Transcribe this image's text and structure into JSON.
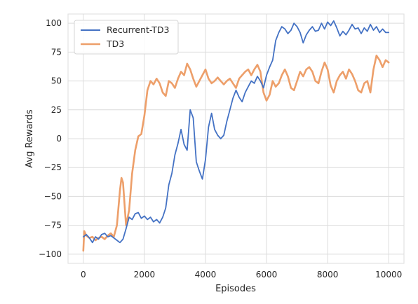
{
  "chart_data": {
    "type": "line",
    "xlabel": "Episodes",
    "ylabel": "Avg Rewards",
    "xlim": [
      -500,
      10500
    ],
    "ylim": [
      -108,
      108
    ],
    "x_ticks": [
      0,
      2000,
      4000,
      6000,
      8000,
      10000
    ],
    "x_tick_labels": [
      "0",
      "2000",
      "4000",
      "6000",
      "8000",
      "10000"
    ],
    "y_ticks": [
      -100,
      -75,
      -50,
      -25,
      0,
      25,
      50,
      75,
      100
    ],
    "y_tick_labels": [
      "−100",
      "−75",
      "−50",
      "−25",
      "0",
      "25",
      "50",
      "75",
      "100"
    ],
    "grid": true,
    "legend": {
      "placement": "top-left"
    },
    "series": [
      {
        "name": "Recurrent-TD3",
        "color": "#4472c4",
        "points": [
          [
            0,
            -85
          ],
          [
            100,
            -83
          ],
          [
            200,
            -86
          ],
          [
            300,
            -90
          ],
          [
            400,
            -85
          ],
          [
            500,
            -87
          ],
          [
            600,
            -83
          ],
          [
            700,
            -82
          ],
          [
            800,
            -85
          ],
          [
            900,
            -84
          ],
          [
            1000,
            -86
          ],
          [
            1100,
            -88
          ],
          [
            1200,
            -90
          ],
          [
            1300,
            -87
          ],
          [
            1400,
            -78
          ],
          [
            1500,
            -68
          ],
          [
            1600,
            -70
          ],
          [
            1700,
            -65
          ],
          [
            1800,
            -64
          ],
          [
            1900,
            -69
          ],
          [
            2000,
            -67
          ],
          [
            2100,
            -70
          ],
          [
            2200,
            -68
          ],
          [
            2300,
            -72
          ],
          [
            2400,
            -70
          ],
          [
            2500,
            -73
          ],
          [
            2600,
            -68
          ],
          [
            2700,
            -60
          ],
          [
            2800,
            -40
          ],
          [
            2900,
            -30
          ],
          [
            3000,
            -14
          ],
          [
            3100,
            -4
          ],
          [
            3200,
            8
          ],
          [
            3300,
            -5
          ],
          [
            3400,
            -10
          ],
          [
            3500,
            25
          ],
          [
            3600,
            18
          ],
          [
            3700,
            -20
          ],
          [
            3800,
            -28
          ],
          [
            3900,
            -35
          ],
          [
            4000,
            -18
          ],
          [
            4100,
            10
          ],
          [
            4200,
            22
          ],
          [
            4300,
            8
          ],
          [
            4400,
            3
          ],
          [
            4500,
            0
          ],
          [
            4600,
            3
          ],
          [
            4700,
            15
          ],
          [
            4800,
            25
          ],
          [
            4900,
            35
          ],
          [
            5000,
            42
          ],
          [
            5100,
            36
          ],
          [
            5200,
            32
          ],
          [
            5300,
            40
          ],
          [
            5400,
            45
          ],
          [
            5500,
            50
          ],
          [
            5600,
            48
          ],
          [
            5700,
            54
          ],
          [
            5800,
            50
          ],
          [
            5900,
            44
          ],
          [
            6000,
            55
          ],
          [
            6100,
            62
          ],
          [
            6200,
            68
          ],
          [
            6300,
            85
          ],
          [
            6400,
            92
          ],
          [
            6500,
            97
          ],
          [
            6600,
            95
          ],
          [
            6700,
            91
          ],
          [
            6800,
            94
          ],
          [
            6900,
            100
          ],
          [
            7000,
            97
          ],
          [
            7100,
            92
          ],
          [
            7200,
            83
          ],
          [
            7300,
            90
          ],
          [
            7400,
            94
          ],
          [
            7500,
            97
          ],
          [
            7600,
            93
          ],
          [
            7700,
            94
          ],
          [
            7800,
            100
          ],
          [
            7900,
            95
          ],
          [
            8000,
            101
          ],
          [
            8100,
            98
          ],
          [
            8200,
            102
          ],
          [
            8300,
            96
          ],
          [
            8400,
            89
          ],
          [
            8500,
            93
          ],
          [
            8600,
            90
          ],
          [
            8700,
            94
          ],
          [
            8800,
            99
          ],
          [
            8900,
            95
          ],
          [
            9000,
            96
          ],
          [
            9100,
            91
          ],
          [
            9200,
            96
          ],
          [
            9300,
            93
          ],
          [
            9400,
            99
          ],
          [
            9500,
            94
          ],
          [
            9600,
            97
          ],
          [
            9700,
            92
          ],
          [
            9800,
            95
          ],
          [
            9900,
            92
          ],
          [
            10000,
            92
          ]
        ]
      },
      {
        "name": "TD3",
        "color": "#ed9f6a",
        "points": [
          [
            0,
            -97
          ],
          [
            30,
            -80
          ],
          [
            100,
            -84
          ],
          [
            200,
            -86
          ],
          [
            300,
            -85
          ],
          [
            400,
            -88
          ],
          [
            500,
            -86
          ],
          [
            600,
            -85
          ],
          [
            700,
            -87
          ],
          [
            800,
            -84
          ],
          [
            900,
            -82
          ],
          [
            1000,
            -85
          ],
          [
            1100,
            -75
          ],
          [
            1200,
            -45
          ],
          [
            1250,
            -34
          ],
          [
            1300,
            -38
          ],
          [
            1400,
            -75
          ],
          [
            1500,
            -62
          ],
          [
            1600,
            -30
          ],
          [
            1700,
            -10
          ],
          [
            1800,
            2
          ],
          [
            1900,
            4
          ],
          [
            2000,
            20
          ],
          [
            2100,
            42
          ],
          [
            2200,
            50
          ],
          [
            2300,
            47
          ],
          [
            2400,
            52
          ],
          [
            2500,
            48
          ],
          [
            2600,
            40
          ],
          [
            2700,
            37
          ],
          [
            2800,
            50
          ],
          [
            2900,
            48
          ],
          [
            3000,
            44
          ],
          [
            3100,
            52
          ],
          [
            3200,
            58
          ],
          [
            3300,
            55
          ],
          [
            3400,
            65
          ],
          [
            3500,
            60
          ],
          [
            3600,
            52
          ],
          [
            3700,
            45
          ],
          [
            3800,
            50
          ],
          [
            3900,
            55
          ],
          [
            4000,
            60
          ],
          [
            4100,
            52
          ],
          [
            4200,
            48
          ],
          [
            4300,
            50
          ],
          [
            4400,
            53
          ],
          [
            4500,
            50
          ],
          [
            4600,
            47
          ],
          [
            4700,
            50
          ],
          [
            4800,
            52
          ],
          [
            4900,
            48
          ],
          [
            5000,
            44
          ],
          [
            5100,
            52
          ],
          [
            5200,
            55
          ],
          [
            5300,
            58
          ],
          [
            5400,
            60
          ],
          [
            5500,
            55
          ],
          [
            5600,
            60
          ],
          [
            5700,
            64
          ],
          [
            5800,
            58
          ],
          [
            5900,
            40
          ],
          [
            6000,
            33
          ],
          [
            6100,
            38
          ],
          [
            6200,
            50
          ],
          [
            6300,
            45
          ],
          [
            6400,
            48
          ],
          [
            6500,
            55
          ],
          [
            6600,
            60
          ],
          [
            6700,
            54
          ],
          [
            6800,
            44
          ],
          [
            6900,
            42
          ],
          [
            7000,
            50
          ],
          [
            7100,
            58
          ],
          [
            7200,
            54
          ],
          [
            7300,
            60
          ],
          [
            7400,
            62
          ],
          [
            7500,
            58
          ],
          [
            7600,
            50
          ],
          [
            7700,
            48
          ],
          [
            7800,
            58
          ],
          [
            7900,
            66
          ],
          [
            8000,
            60
          ],
          [
            8100,
            46
          ],
          [
            8200,
            40
          ],
          [
            8300,
            50
          ],
          [
            8400,
            55
          ],
          [
            8500,
            58
          ],
          [
            8600,
            52
          ],
          [
            8700,
            60
          ],
          [
            8800,
            56
          ],
          [
            8900,
            50
          ],
          [
            9000,
            42
          ],
          [
            9100,
            40
          ],
          [
            9200,
            48
          ],
          [
            9300,
            50
          ],
          [
            9400,
            40
          ],
          [
            9500,
            60
          ],
          [
            9600,
            72
          ],
          [
            9700,
            68
          ],
          [
            9800,
            62
          ],
          [
            9900,
            68
          ],
          [
            10000,
            66
          ]
        ]
      }
    ]
  }
}
